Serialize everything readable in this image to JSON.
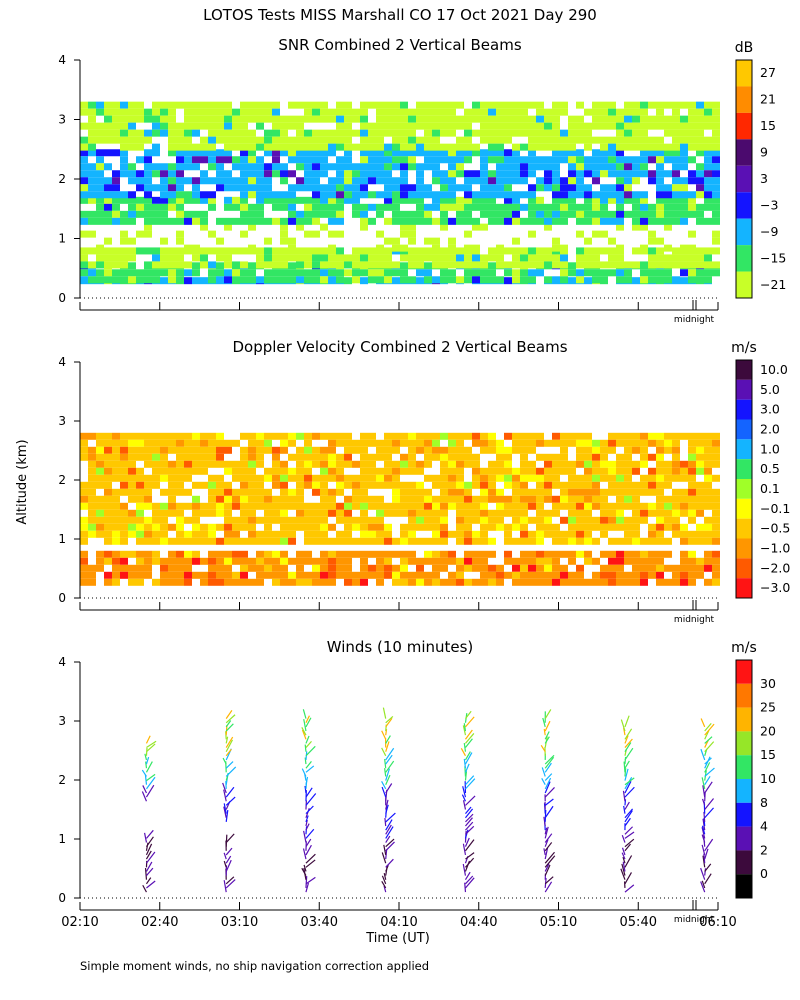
{
  "page": {
    "title": "LOTOS Tests MISS Marshall CO  17 Oct 2021 Day 290",
    "altitude_label": "Altitude (km)",
    "time_label": "Time (UT)",
    "midnight_label": "midnight",
    "footnote": "Simple moment winds, no ship navigation correction applied"
  },
  "chart_data": [
    {
      "type": "heatmap",
      "title": "SNR Combined 2 Vertical Beams",
      "ylabel": "Altitude (km)",
      "ylim": [
        0,
        4
      ],
      "yticks": [
        "0",
        "1",
        "2",
        "3",
        "4"
      ],
      "colorbar": {
        "unit": "dB",
        "labels": [
          "27",
          "21",
          "15",
          "9",
          "3",
          "−3",
          "−9",
          "−15",
          "−21"
        ],
        "colors": [
          "#ffc800",
          "#ff8c00",
          "#ff2800",
          "#4b0a6e",
          "#5a10b4",
          "#1414ff",
          "#14b4ff",
          "#32e664",
          "#c8ff28"
        ]
      },
      "layers": [
        {
          "alt_low": 0.25,
          "alt_high": 0.35,
          "color": "#14b4ff"
        },
        {
          "alt_low": 0.35,
          "alt_high": 0.6,
          "color": "#32e664"
        },
        {
          "alt_low": 0.6,
          "alt_high": 0.85,
          "color": "#c8ff28"
        },
        {
          "alt_low": 0.85,
          "alt_high": 1.25,
          "color": "#ffffff"
        },
        {
          "alt_low": 1.25,
          "alt_high": 1.7,
          "color": "#32e664"
        },
        {
          "alt_low": 1.7,
          "alt_high": 2.5,
          "color": "#14b4ff"
        },
        {
          "alt_low": 2.5,
          "alt_high": 3.3,
          "color": "#c8ff28"
        }
      ]
    },
    {
      "type": "heatmap",
      "title": "Doppler Velocity Combined 2 Vertical Beams",
      "ylabel": "Altitude (km)",
      "ylim": [
        0,
        4
      ],
      "yticks": [
        "0",
        "1",
        "2",
        "3",
        "4"
      ],
      "colorbar": {
        "unit": "m/s",
        "labels": [
          "10.0",
          "5.0",
          "3.0",
          "2.0",
          "1.0",
          "0.5",
          "0.1",
          "−0.1",
          "−0.5",
          "−1.0",
          "−2.0",
          "−3.0"
        ],
        "colors": [
          "#3c0a3c",
          "#5a10b4",
          "#1414ff",
          "#1464ff",
          "#14b4ff",
          "#32e664",
          "#a0ff28",
          "#ffff00",
          "#ffc800",
          "#ff9600",
          "#ff5a00",
          "#ff1414"
        ]
      },
      "layers": [
        {
          "alt_low": 0.25,
          "alt_high": 0.8,
          "color": "#ff9600"
        },
        {
          "alt_low": 1.0,
          "alt_high": 2.8,
          "color": "#ffc800"
        }
      ]
    },
    {
      "type": "scatter",
      "title": "Winds (10 minutes)",
      "xlabel": "Time (UT)",
      "ylabel": "Altitude (km)",
      "ylim": [
        0,
        4
      ],
      "yticks": [
        "0",
        "1",
        "2",
        "3",
        "4"
      ],
      "xticks": [
        "02:10",
        "02:40",
        "03:10",
        "03:40",
        "04:10",
        "04:40",
        "05:10",
        "05:40",
        "06:10"
      ],
      "colorbar": {
        "unit": "m/s",
        "labels": [
          "30",
          "25",
          "20",
          "15",
          "10",
          "8",
          "4",
          "2",
          "0"
        ],
        "colors": [
          "#ff1414",
          "#ff7800",
          "#ffb400",
          "#96e628",
          "#32e664",
          "#14b4ff",
          "#1414ff",
          "#5a10b4",
          "#3c0a3c",
          "#000000"
        ]
      },
      "profile_times_min": [
        25,
        55,
        85,
        115,
        145,
        175,
        205,
        235
      ],
      "profiles": [
        {
          "bottom_km": 0.1,
          "top_km": 2.65,
          "gap_km": [
            1.05,
            1.6
          ]
        },
        {
          "bottom_km": 0.1,
          "top_km": 3.05,
          "gap_km": [
            1.0,
            1.25
          ]
        },
        {
          "bottom_km": 0.1,
          "top_km": 3.05,
          "gap_km": null
        },
        {
          "bottom_km": 0.1,
          "top_km": 3.05,
          "gap_km": null
        },
        {
          "bottom_km": 0.1,
          "top_km": 3.05,
          "gap_km": null
        },
        {
          "bottom_km": 0.1,
          "top_km": 3.05,
          "gap_km": null
        },
        {
          "bottom_km": 0.1,
          "top_km": 2.95,
          "gap_km": null
        },
        {
          "bottom_km": 0.1,
          "top_km": 2.9,
          "gap_km": null
        }
      ]
    }
  ]
}
